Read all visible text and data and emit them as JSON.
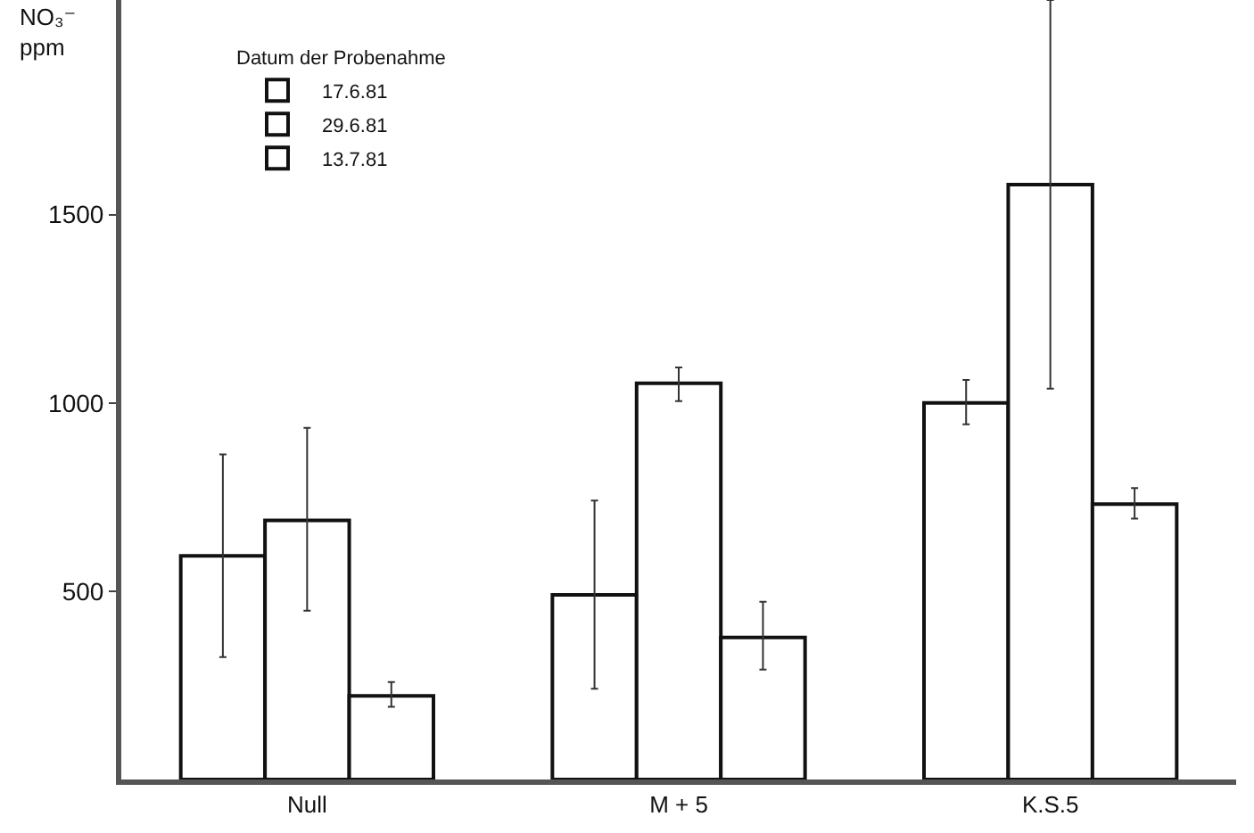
{
  "chart_data": {
    "type": "bar",
    "ylabel": "NO₃⁻ ppm",
    "legend_title": "Datum der Probenahme",
    "categories": [
      "Null",
      "M + 5",
      "K.S.5"
    ],
    "series": [
      {
        "name": "17.6.81",
        "color": "#ffffff",
        "values": [
          594,
          490,
          1000
        ],
        "errors": [
          [
            325,
            863
          ],
          [
            241,
            741
          ],
          [
            943,
            1061
          ]
        ]
      },
      {
        "name": "29.6.81",
        "color": "#ffffff",
        "values": [
          688,
          1052,
          1580
        ],
        "errors": [
          [
            448,
            934
          ],
          [
            1005,
            1094
          ],
          [
            1038,
            2070
          ]
        ]
      },
      {
        "name": "13.7.81",
        "color": "#ffffff",
        "values": [
          222,
          377,
          731
        ],
        "errors": [
          [
            193,
            259
          ],
          [
            292,
            472
          ],
          [
            693,
            774
          ]
        ]
      }
    ],
    "ylim": [
      0,
      2070
    ],
    "yticks": [
      500,
      1000,
      1500
    ],
    "grid": false,
    "legend": "top left"
  }
}
